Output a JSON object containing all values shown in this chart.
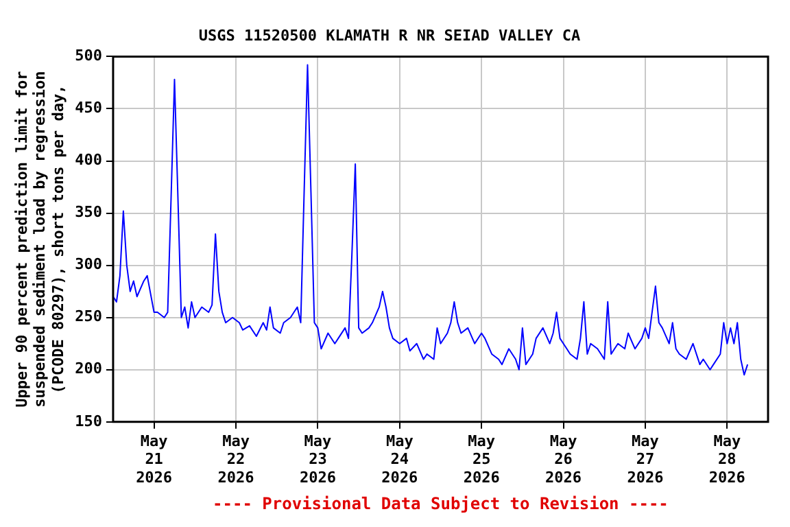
{
  "chart_data": {
    "type": "line",
    "title": "USGS 11520500 KLAMATH R NR SEIAD VALLEY CA",
    "ylabel": "Upper 90 percent prediction limit for suspended sediment load by regression (PCODE 80297), short tons per day,",
    "annotations": [
      "---- Provisional Data Subject to Revision ----"
    ],
    "xlim": [
      "2026-05-20T12:00",
      "2026-05-28T12:00"
    ],
    "xticks": [
      {
        "value": "2026-05-21",
        "label": "May\n21\n2026"
      },
      {
        "value": "2026-05-22",
        "label": "May\n22\n2026"
      },
      {
        "value": "2026-05-23",
        "label": "May\n23\n2026"
      },
      {
        "value": "2026-05-24",
        "label": "May\n24\n2026"
      },
      {
        "value": "2026-05-25",
        "label": "May\n25\n2026"
      },
      {
        "value": "2026-05-26",
        "label": "May\n26\n2026"
      },
      {
        "value": "2026-05-27",
        "label": "May\n27\n2026"
      },
      {
        "value": "2026-05-28",
        "label": "May\n28\n2026"
      }
    ],
    "ylim": [
      150,
      500
    ],
    "yticks": [
      150,
      200,
      250,
      300,
      350,
      400,
      450,
      500
    ],
    "grid": true,
    "legend": false,
    "marker": "none",
    "line_style": "solid",
    "series": [
      {
        "color": "#0000ff",
        "x": [
          "2026-05-20T12:00",
          "2026-05-20T13:00",
          "2026-05-20T14:00",
          "2026-05-20T15:00",
          "2026-05-20T16:00",
          "2026-05-20T17:00",
          "2026-05-20T18:00",
          "2026-05-20T19:00",
          "2026-05-20T21:00",
          "2026-05-20T22:00",
          "2026-05-21T00:00",
          "2026-05-21T01:00",
          "2026-05-21T03:00",
          "2026-05-21T04:00",
          "2026-05-21T05:00",
          "2026-05-21T06:00",
          "2026-05-21T07:00",
          "2026-05-21T08:00",
          "2026-05-21T09:00",
          "2026-05-21T10:00",
          "2026-05-21T11:00",
          "2026-05-21T12:00",
          "2026-05-21T14:00",
          "2026-05-21T16:00",
          "2026-05-21T17:00",
          "2026-05-21T18:00",
          "2026-05-21T19:00",
          "2026-05-21T20:00",
          "2026-05-21T21:00",
          "2026-05-21T23:00",
          "2026-05-22T01:00",
          "2026-05-22T02:00",
          "2026-05-22T04:00",
          "2026-05-22T06:00",
          "2026-05-22T08:00",
          "2026-05-22T09:00",
          "2026-05-22T10:00",
          "2026-05-22T11:00",
          "2026-05-22T13:00",
          "2026-05-22T14:00",
          "2026-05-22T16:00",
          "2026-05-22T18:00",
          "2026-05-22T19:00",
          "2026-05-22T20:00",
          "2026-05-22T21:00",
          "2026-05-22T22:00",
          "2026-05-22T23:00",
          "2026-05-23T00:00",
          "2026-05-23T01:00",
          "2026-05-23T03:00",
          "2026-05-23T05:00",
          "2026-05-23T06:00",
          "2026-05-23T08:00",
          "2026-05-23T09:00",
          "2026-05-23T10:00",
          "2026-05-23T11:00",
          "2026-05-23T12:00",
          "2026-05-23T13:00",
          "2026-05-23T15:00",
          "2026-05-23T16:00",
          "2026-05-23T18:00",
          "2026-05-23T19:00",
          "2026-05-23T20:00",
          "2026-05-23T21:00",
          "2026-05-23T22:00",
          "2026-05-24T00:00",
          "2026-05-24T02:00",
          "2026-05-24T03:00",
          "2026-05-24T05:00",
          "2026-05-24T07:00",
          "2026-05-24T08:00",
          "2026-05-24T10:00",
          "2026-05-24T11:00",
          "2026-05-24T12:00",
          "2026-05-24T14:00",
          "2026-05-24T15:00",
          "2026-05-24T16:00",
          "2026-05-24T17:00",
          "2026-05-24T18:00",
          "2026-05-24T20:00",
          "2026-05-24T22:00",
          "2026-05-25T00:00",
          "2026-05-25T01:00",
          "2026-05-25T03:00",
          "2026-05-25T05:00",
          "2026-05-25T06:00",
          "2026-05-25T08:00",
          "2026-05-25T10:00",
          "2026-05-25T11:00",
          "2026-05-25T12:00",
          "2026-05-25T13:00",
          "2026-05-25T15:00",
          "2026-05-25T16:00",
          "2026-05-25T18:00",
          "2026-05-25T20:00",
          "2026-05-25T21:00",
          "2026-05-25T22:00",
          "2026-05-25T23:00",
          "2026-05-26T01:00",
          "2026-05-26T02:00",
          "2026-05-26T04:00",
          "2026-05-26T05:00",
          "2026-05-26T06:00",
          "2026-05-26T07:00",
          "2026-05-26T08:00",
          "2026-05-26T10:00",
          "2026-05-26T12:00",
          "2026-05-26T13:00",
          "2026-05-26T14:00",
          "2026-05-26T16:00",
          "2026-05-26T18:00",
          "2026-05-26T19:00",
          "2026-05-26T21:00",
          "2026-05-26T23:00",
          "2026-05-27T00:00",
          "2026-05-27T01:00",
          "2026-05-27T03:00",
          "2026-05-27T04:00",
          "2026-05-27T05:00",
          "2026-05-27T07:00",
          "2026-05-27T08:00",
          "2026-05-27T09:00",
          "2026-05-27T10:00",
          "2026-05-27T12:00",
          "2026-05-27T14:00",
          "2026-05-27T16:00",
          "2026-05-27T17:00",
          "2026-05-27T19:00",
          "2026-05-27T20:00",
          "2026-05-27T22:00",
          "2026-05-27T23:00",
          "2026-05-28T00:00",
          "2026-05-28T01:00",
          "2026-05-28T02:00",
          "2026-05-28T03:00",
          "2026-05-28T04:00",
          "2026-05-28T05:00",
          "2026-05-28T06:00"
        ],
        "values": [
          270,
          265,
          290,
          352,
          300,
          275,
          285,
          270,
          285,
          290,
          255,
          255,
          250,
          255,
          365,
          478,
          365,
          250,
          260,
          240,
          265,
          250,
          260,
          255,
          262,
          330,
          275,
          255,
          245,
          250,
          245,
          238,
          242,
          232,
          245,
          238,
          260,
          240,
          235,
          245,
          250,
          260,
          245,
          370,
          492,
          370,
          245,
          240,
          220,
          235,
          225,
          230,
          240,
          230,
          310,
          397,
          240,
          235,
          240,
          245,
          260,
          275,
          260,
          240,
          230,
          225,
          230,
          218,
          225,
          210,
          215,
          210,
          240,
          225,
          235,
          245,
          265,
          245,
          235,
          240,
          225,
          235,
          230,
          215,
          210,
          205,
          220,
          210,
          200,
          240,
          205,
          215,
          230,
          240,
          225,
          235,
          255,
          230,
          220,
          215,
          210,
          230,
          265,
          215,
          225,
          220,
          210,
          265,
          215,
          225,
          220,
          235,
          220,
          230,
          240,
          230,
          280,
          245,
          240,
          225,
          245,
          220,
          215,
          210,
          225,
          205,
          210,
          200,
          205,
          215,
          245,
          225,
          240,
          225,
          245,
          210,
          195,
          205
        ]
      }
    ]
  }
}
